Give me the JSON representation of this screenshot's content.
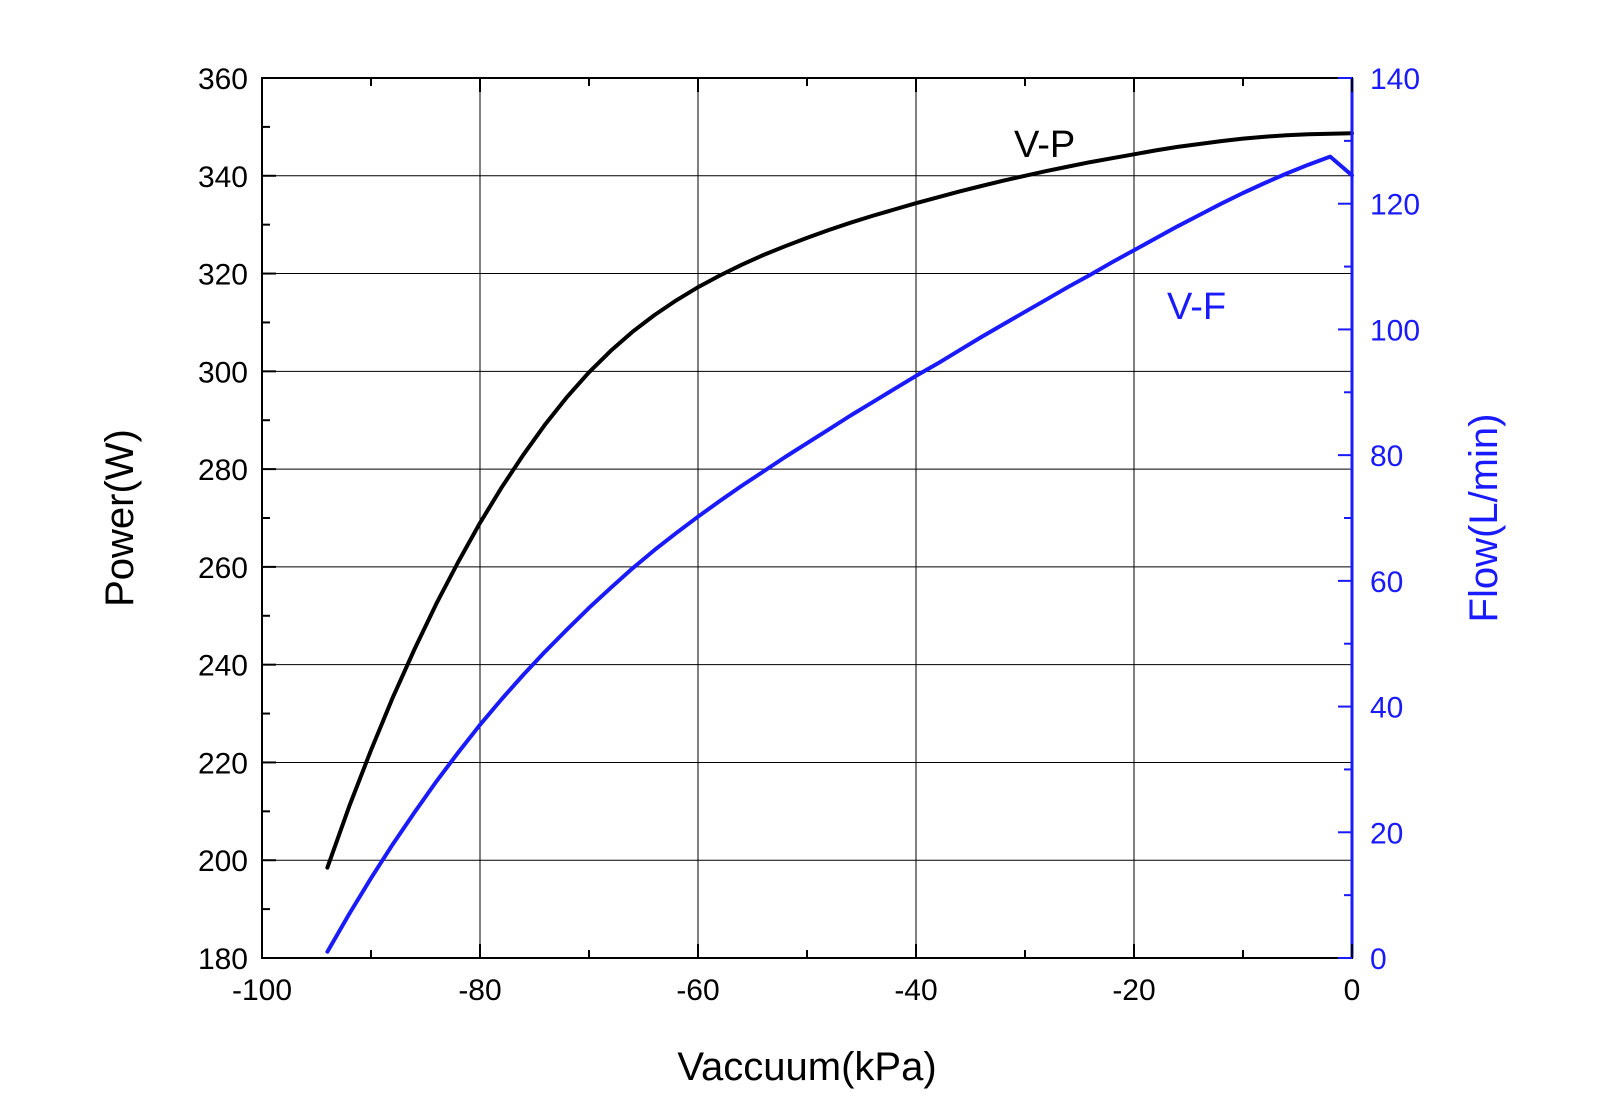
{
  "chart_data": {
    "type": "line",
    "title": "",
    "xlabel": "Vaccuum(kPa)",
    "ylabel": "Power(W)",
    "y2label": "Flow(L/min)",
    "xlim": [
      -100,
      0
    ],
    "ylim": [
      180,
      360
    ],
    "y2lim": [
      0,
      140
    ],
    "xticks": [
      -100,
      -80,
      -60,
      -40,
      -20,
      0
    ],
    "yticks": [
      180,
      200,
      220,
      240,
      260,
      280,
      300,
      320,
      340,
      360
    ],
    "y2ticks": [
      0,
      20,
      40,
      60,
      80,
      100,
      120,
      140
    ],
    "grid": true,
    "colors": {
      "primary": "#000000",
      "secondary": "#1a1aff"
    },
    "series": [
      {
        "name": "V-P",
        "axis": "left",
        "color": "#000000",
        "x": [
          -94,
          -92,
          -90,
          -88,
          -86,
          -84,
          -82,
          -80,
          -78,
          -76,
          -74,
          -72,
          -70,
          -68,
          -66,
          -64,
          -62,
          -60,
          -58,
          -56,
          -54,
          -52,
          -50,
          -48,
          -46,
          -44,
          -42,
          -40,
          -38,
          -36,
          -34,
          -32,
          -30,
          -28,
          -26,
          -24,
          -22,
          -20,
          -18,
          -16,
          -14,
          -12,
          -10,
          -8,
          -6,
          -4,
          -2,
          0
        ],
        "y": [
          198.5,
          211,
          222.5,
          233.3,
          243.2,
          252.5,
          261,
          269,
          276.3,
          283,
          289.2,
          294.8,
          299.8,
          304.2,
          308.1,
          311.5,
          314.5,
          317.2,
          319.6,
          321.8,
          323.8,
          325.6,
          327.3,
          328.9,
          330.4,
          331.8,
          333.1,
          334.4,
          335.6,
          336.8,
          337.9,
          339,
          340,
          341,
          341.9,
          342.8,
          343.6,
          344.4,
          345.2,
          345.9,
          346.5,
          347.1,
          347.6,
          348,
          348.3,
          348.5,
          348.6,
          348.7
        ]
      },
      {
        "name": "V-F",
        "axis": "right",
        "color": "#1a1aff",
        "x": [
          -94,
          -92,
          -90,
          -88,
          -86,
          -84,
          -82,
          -80,
          -78,
          -76,
          -74,
          -72,
          -70,
          -68,
          -66,
          -64,
          -62,
          -60,
          -58,
          -56,
          -54,
          -52,
          -50,
          -48,
          -46,
          -44,
          -42,
          -40,
          -38,
          -36,
          -34,
          -32,
          -30,
          -28,
          -26,
          -24,
          -22,
          -20,
          -18,
          -16,
          -14,
          -12,
          -10,
          -8,
          -6,
          -4,
          -2,
          0
        ],
        "y": [
          1,
          7,
          12.7,
          18.1,
          23.2,
          28.1,
          32.7,
          37.1,
          41.2,
          45.1,
          48.8,
          52.3,
          55.7,
          58.9,
          62,
          64.9,
          67.6,
          70.2,
          72.7,
          75.1,
          77.4,
          79.7,
          81.9,
          84.1,
          86.3,
          88.4,
          90.5,
          92.6,
          94.6,
          96.7,
          98.8,
          100.8,
          102.8,
          104.8,
          106.8,
          108.7,
          110.7,
          112.6,
          114.5,
          116.4,
          118.2,
          120,
          121.7,
          123.3,
          124.8,
          126.2,
          127.5,
          124.5
        ]
      }
    ]
  }
}
